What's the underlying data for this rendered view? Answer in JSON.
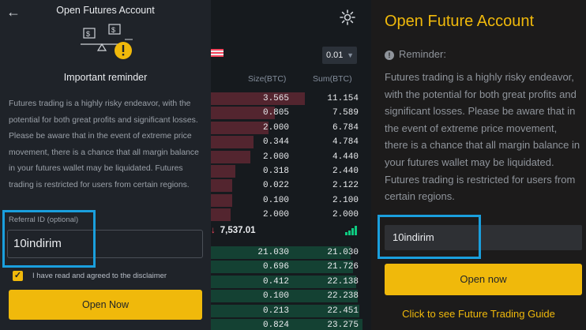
{
  "left_modal": {
    "title": "Open Futures Account",
    "heading": "Important reminder",
    "body": "Futures trading is a highly risky endeavor, with the potential for both great profits and significant losses. Please be aware that in the event of extreme price movement, there is a chance that all margin balance in your futures wallet may be liquidated. Futures trading is restricted for users from certain regions.",
    "referral_label": "Referral ID (optional)",
    "referral_value": "10indirim",
    "disclaimer_label": "I have read and agreed to the disclaimer",
    "disclaimer_checked": true,
    "open_button": "Open Now",
    "back_icon": "arrow-left-icon",
    "illustration_icon": "scale-warning-icon"
  },
  "order_book": {
    "tick_size": "0.01",
    "size_header": "Size(BTC)",
    "sum_header": "Sum(BTC)",
    "asks": [
      {
        "size": "3.565",
        "sum": "11.154",
        "depth": 0.62
      },
      {
        "size": "0.805",
        "sum": "7.589",
        "depth": 0.42
      },
      {
        "size": "2.000",
        "sum": "6.784",
        "depth": 0.38
      },
      {
        "size": "0.344",
        "sum": "4.784",
        "depth": 0.28
      },
      {
        "size": "2.000",
        "sum": "4.440",
        "depth": 0.26
      },
      {
        "size": "0.318",
        "sum": "2.440",
        "depth": 0.16
      },
      {
        "size": "0.022",
        "sum": "2.122",
        "depth": 0.14
      },
      {
        "size": "0.100",
        "sum": "2.100",
        "depth": 0.14
      },
      {
        "size": "2.000",
        "sum": "2.000",
        "depth": 0.13
      }
    ],
    "last_price": "7,537.01",
    "bids": [
      {
        "size": "21.030",
        "sum": "21.030",
        "depth": 0.92
      },
      {
        "size": "0.696",
        "sum": "21.726",
        "depth": 0.94
      },
      {
        "size": "0.412",
        "sum": "22.138",
        "depth": 0.96
      },
      {
        "size": "0.100",
        "sum": "22.238",
        "depth": 0.97
      },
      {
        "size": "0.213",
        "sum": "22.451",
        "depth": 0.98
      },
      {
        "size": "0.824",
        "sum": "23.275",
        "depth": 1.0
      }
    ],
    "colors": {
      "ask": "#f6465d",
      "bid": "#0ecb81"
    }
  },
  "right_panel": {
    "title": "Open Future Account",
    "reminder_label": "Reminder:",
    "body": "Futures trading is a highly risky endeavor, with the potential for both great profits and significant losses. Please be aware that in the event of extreme price movement, there is a chance that all margin balance in your futures wallet may be liquidated. Futures trading is restricted for users from certain regions.",
    "referral_value": "10indirim",
    "open_button": "Open now",
    "guide_link": "Click to see Future Trading Guide",
    "accent": "#f0b90b",
    "highlight": "#1a9fdd"
  }
}
